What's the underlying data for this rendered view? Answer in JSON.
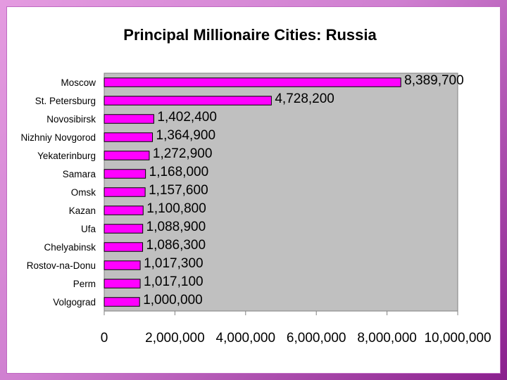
{
  "chart_data": {
    "type": "bar",
    "orientation": "horizontal",
    "title": "Principal Millionaire Cities: Russia",
    "categories": [
      "Moscow",
      "St. Petersburg",
      "Novosibirsk",
      "Nizhniy Novgorod",
      "Yekaterinburg",
      "Samara",
      "Omsk",
      "Kazan",
      "Ufa",
      "Chelyabinsk",
      "Rostov-na-Donu",
      "Perm",
      "Volgograd"
    ],
    "values": [
      8389700,
      4728200,
      1402400,
      1364900,
      1272900,
      1168000,
      1157600,
      1100800,
      1088900,
      1086300,
      1017300,
      1017100,
      1000000
    ],
    "data_labels": [
      "8,389,700",
      "4,728,200",
      "1,402,400",
      "1,364,900",
      "1,272,900",
      "1,168,000",
      "1,157,600",
      "1,100,800",
      "1,088,900",
      "1,086,300",
      "1,017,300",
      "1,017,100",
      "1,000,000"
    ],
    "xlim": [
      0,
      10000000
    ],
    "x_ticks": [
      0,
      2000000,
      4000000,
      6000000,
      8000000,
      10000000
    ],
    "x_tick_labels": [
      "0",
      "2,000,000",
      "4,000,000",
      "6,000,000",
      "8,000,000",
      "10,000,000"
    ],
    "grid": false,
    "legend": "none",
    "colors": {
      "bar": "#ff00ff",
      "bar_stroke": "#000000",
      "plot_bg": "#c0c0c0",
      "slide_bg": "#ffffff",
      "frame": "#b460b8"
    }
  }
}
